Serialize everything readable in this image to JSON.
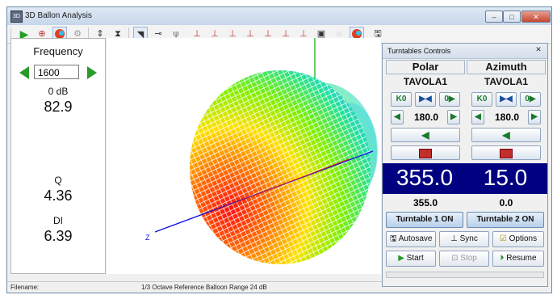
{
  "window": {
    "title": "3D Ballon Analysis"
  },
  "left_panel": {
    "frequency_label": "Frequency",
    "frequency_value": "1600",
    "level_label": "0 dB",
    "level_value": "82.9",
    "q_label": "Q",
    "q_value": "4.36",
    "di_label": "DI",
    "di_value": "6.39"
  },
  "plot": {
    "z_axis_label": "Z"
  },
  "status": {
    "filename_label": "Filename:",
    "info": "1/3 Octave  Reference Balloon Range 24 dB"
  },
  "turntables": {
    "title": "Turntables Controls",
    "polar": {
      "header": "Polar",
      "device": "TAVOLA1",
      "buttons": [
        "K0",
        "▶◀",
        "0▶"
      ],
      "angle_value": "180.0",
      "big_value": "355.0",
      "small_value": "355.0",
      "on_label": "Turntable 1 ON"
    },
    "azimuth": {
      "header": "Azimuth",
      "device": "TAVOLA1",
      "buttons": [
        "K0",
        "▶◀",
        "0▶"
      ],
      "angle_value": "180.0",
      "big_value": "15.0",
      "small_value": "0.0",
      "on_label": "Turntable 2 ON"
    },
    "actions": {
      "autosave": "Autosave",
      "sync": "Sync",
      "options": "Options",
      "start": "Start",
      "stop": "Stop",
      "resume": "Resume"
    }
  },
  "colors": {
    "navy": "#000080",
    "accent_green": "#2a9a2a"
  }
}
